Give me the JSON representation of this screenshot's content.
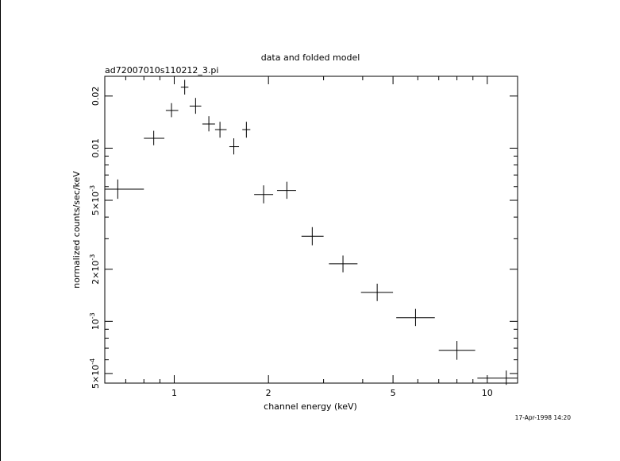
{
  "chart_data": {
    "type": "scatter",
    "title": "data and folded model",
    "subtitle": "ad72007010s110212_3.pi",
    "xlabel": "channel energy (keV)",
    "ylabel": "normalized counts/sec/keV",
    "timestamp": "17-Apr-1998 14:20",
    "x_scale": "log",
    "y_scale": "log",
    "xlim": [
      0.6,
      12.5
    ],
    "ylim": [
      0.00044,
      0.026
    ],
    "x_tick_labels": [
      {
        "value": 1,
        "label": "1"
      },
      {
        "value": 2,
        "label": "2"
      },
      {
        "value": 5,
        "label": "5"
      },
      {
        "value": 10,
        "label": "10"
      }
    ],
    "y_tick_labels": [
      {
        "value": 0.0005,
        "mant": "5×10",
        "exp": "-4"
      },
      {
        "value": 0.001,
        "mant": "10",
        "exp": "-3"
      },
      {
        "value": 0.002,
        "mant": "2×10",
        "exp": "-3"
      },
      {
        "value": 0.005,
        "mant": "5×10",
        "exp": "-3"
      },
      {
        "value": 0.01,
        "mant": "0.01",
        "exp": ""
      },
      {
        "value": 0.02,
        "mant": "0.02",
        "exp": ""
      }
    ],
    "points": [
      {
        "x": 0.66,
        "xlo": 0.6,
        "xhi": 0.8,
        "y": 0.0058,
        "ylo": 0.0051,
        "yhi": 0.0066
      },
      {
        "x": 0.86,
        "xlo": 0.8,
        "xhi": 0.93,
        "y": 0.0114,
        "ylo": 0.0104,
        "yhi": 0.0126
      },
      {
        "x": 0.98,
        "xlo": 0.94,
        "xhi": 1.03,
        "y": 0.0165,
        "ylo": 0.0151,
        "yhi": 0.0182
      },
      {
        "x": 1.08,
        "xlo": 1.05,
        "xhi": 1.11,
        "y": 0.0225,
        "ylo": 0.0204,
        "yhi": 0.0248
      },
      {
        "x": 1.17,
        "xlo": 1.12,
        "xhi": 1.22,
        "y": 0.0175,
        "ylo": 0.0158,
        "yhi": 0.0195
      },
      {
        "x": 1.29,
        "xlo": 1.23,
        "xhi": 1.35,
        "y": 0.0138,
        "ylo": 0.0125,
        "yhi": 0.0153
      },
      {
        "x": 1.4,
        "xlo": 1.35,
        "xhi": 1.47,
        "y": 0.0128,
        "ylo": 0.0115,
        "yhi": 0.0142
      },
      {
        "x": 1.55,
        "xlo": 1.5,
        "xhi": 1.61,
        "y": 0.0102,
        "ylo": 0.0092,
        "yhi": 0.0114
      },
      {
        "x": 1.7,
        "xlo": 1.65,
        "xhi": 1.75,
        "y": 0.0128,
        "ylo": 0.0115,
        "yhi": 0.0142
      },
      {
        "x": 1.93,
        "xlo": 1.8,
        "xhi": 2.07,
        "y": 0.0054,
        "ylo": 0.0048,
        "yhi": 0.0061
      },
      {
        "x": 2.29,
        "xlo": 2.13,
        "xhi": 2.45,
        "y": 0.0057,
        "ylo": 0.0051,
        "yhi": 0.0064
      },
      {
        "x": 2.76,
        "xlo": 2.55,
        "xhi": 3.0,
        "y": 0.0031,
        "ylo": 0.00275,
        "yhi": 0.0035
      },
      {
        "x": 3.46,
        "xlo": 3.12,
        "xhi": 3.85,
        "y": 0.00215,
        "ylo": 0.00192,
        "yhi": 0.0024
      },
      {
        "x": 4.45,
        "xlo": 3.95,
        "xhi": 5.0,
        "y": 0.00147,
        "ylo": 0.00131,
        "yhi": 0.00165
      },
      {
        "x": 5.9,
        "xlo": 5.12,
        "xhi": 6.8,
        "y": 0.00105,
        "ylo": 0.00094,
        "yhi": 0.00118
      },
      {
        "x": 8.0,
        "xlo": 7.0,
        "xhi": 9.15,
        "y": 0.00068,
        "ylo": 0.0006,
        "yhi": 0.00077
      },
      {
        "x": 11.5,
        "xlo": 9.3,
        "xhi": 12.5,
        "y": 0.00047,
        "ylo": 0.00043,
        "yhi": 0.00052
      }
    ],
    "grid": false,
    "legend": "none"
  }
}
